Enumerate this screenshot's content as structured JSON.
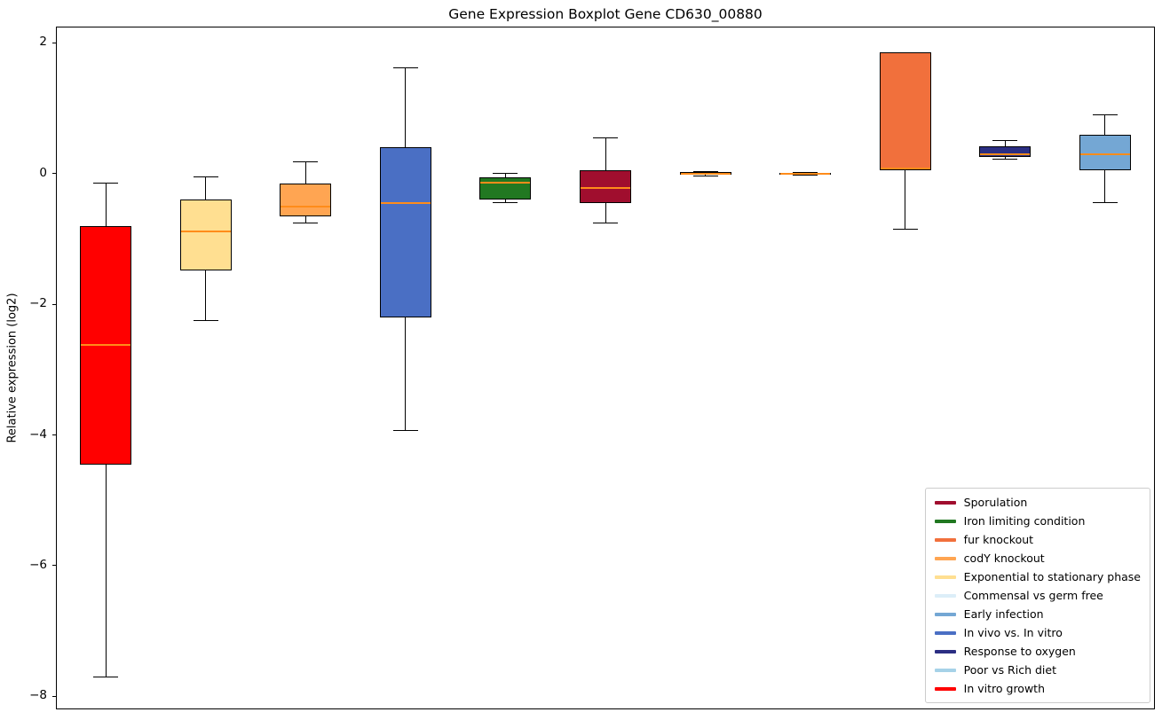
{
  "chart_data": {
    "type": "boxplot",
    "title": "Gene Expression Boxplot Gene CD630_00880",
    "ylabel": "Relative expression (log2)",
    "ylim": [
      -8.2,
      2.25
    ],
    "yticks": [
      2,
      0,
      -2,
      -4,
      -6,
      -8
    ],
    "grid": false,
    "legend_position": "lower right",
    "median_color": "#ff8c1a",
    "series": [
      {
        "name": "In vitro growth",
        "color": "#ff0000",
        "whislo": -7.7,
        "q1": -4.45,
        "med": -2.62,
        "q3": -0.8,
        "whishi": -0.15
      },
      {
        "name": "Exponential to stationary phase",
        "color": "#ffdf91",
        "whislo": -2.25,
        "q1": -1.48,
        "med": -0.88,
        "q3": -0.4,
        "whishi": -0.05
      },
      {
        "name": "codY knockout",
        "color": "#ffa552",
        "whislo": -0.76,
        "q1": -0.66,
        "med": -0.5,
        "q3": -0.15,
        "whishi": 0.18
      },
      {
        "name": "In vivo vs. In vitro",
        "color": "#4a6fc4",
        "whislo": -3.93,
        "q1": -2.2,
        "med": -0.45,
        "q3": 0.4,
        "whishi": 1.62
      },
      {
        "name": "Iron limiting condition",
        "color": "#217821",
        "whislo": -0.44,
        "q1": -0.4,
        "med": -0.14,
        "q3": -0.06,
        "whishi": 0.0
      },
      {
        "name": "Sporulation",
        "color": "#a00e2e",
        "whislo": -0.76,
        "q1": -0.45,
        "med": -0.22,
        "q3": 0.05,
        "whishi": 0.55
      },
      {
        "name": "Commensal vs germ free",
        "color": "#dceef8",
        "whislo": -0.03,
        "q1": -0.02,
        "med": 0.0,
        "q3": 0.02,
        "whishi": 0.03
      },
      {
        "name": "Poor vs Rich diet",
        "color": "#a6d2e8",
        "whislo": -0.02,
        "q1": -0.01,
        "med": 0.0,
        "q3": 0.01,
        "whishi": 0.02
      },
      {
        "name": "fur knockout",
        "color": "#f1703c",
        "whislo": -0.85,
        "q1": 0.05,
        "med": 0.08,
        "q3": 1.85,
        "whishi": 1.85
      },
      {
        "name": "Response to oxygen",
        "color": "#2b2e83",
        "whislo": 0.22,
        "q1": 0.25,
        "med": 0.3,
        "q3": 0.42,
        "whishi": 0.5
      },
      {
        "name": "Early infection",
        "color": "#74a7d4",
        "whislo": -0.45,
        "q1": 0.05,
        "med": 0.3,
        "q3": 0.6,
        "whishi": 0.9
      }
    ],
    "legend": [
      {
        "label": "Sporulation",
        "color": "#a00e2e"
      },
      {
        "label": "Iron limiting condition",
        "color": "#217821"
      },
      {
        "label": "fur knockout",
        "color": "#f1703c"
      },
      {
        "label": "codY knockout",
        "color": "#ffa552"
      },
      {
        "label": "Exponential to stationary phase",
        "color": "#ffdf91"
      },
      {
        "label": "Commensal vs germ free",
        "color": "#dceef8"
      },
      {
        "label": "Early infection",
        "color": "#74a7d4"
      },
      {
        "label": "In vivo vs. In vitro",
        "color": "#4a6fc4"
      },
      {
        "label": "Response to oxygen",
        "color": "#2b2e83"
      },
      {
        "label": "Poor vs Rich diet",
        "color": "#a6d2e8"
      },
      {
        "label": "In vitro growth",
        "color": "#ff0000"
      }
    ]
  }
}
